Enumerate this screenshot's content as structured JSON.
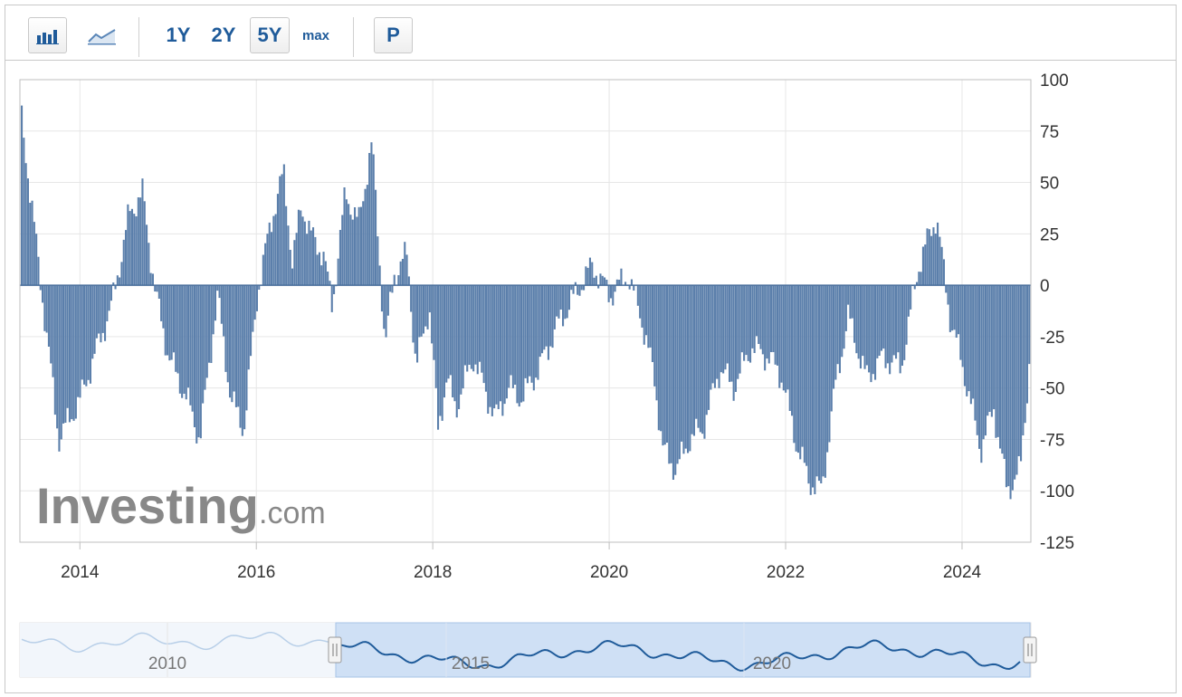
{
  "toolbar": {
    "icons": [
      "bar-chart-icon",
      "line-chart-icon"
    ],
    "ranges": [
      "1Y",
      "2Y",
      "5Y",
      "max"
    ],
    "selected_range": "5Y",
    "p_label": "P"
  },
  "logo": {
    "main": "Investing",
    "suffix": ".com"
  },
  "colors": {
    "bar": "#5b7fab",
    "navigator_line": "#1f5b9a",
    "navigator_fill": "#cfe0f5",
    "accent": "#1f5b9a"
  },
  "chart_data": {
    "type": "bar",
    "x": [
      2013.32,
      2013.75,
      2014.0,
      2014.15,
      2014.35,
      2014.55,
      2014.7,
      2014.85,
      2015.0,
      2015.2,
      2015.35,
      2015.55,
      2015.7,
      2015.85,
      2016.0,
      2016.15,
      2016.3,
      2016.4,
      2016.5,
      2016.6,
      2016.75,
      2016.85,
      2017.0,
      2017.15,
      2017.3,
      2017.45,
      2017.55,
      2017.7,
      2017.8,
      2017.95,
      2018.05,
      2018.15,
      2018.25,
      2018.45,
      2018.7,
      2018.85,
      2019.0,
      2019.2,
      2019.4,
      2019.6,
      2019.8,
      2020.0,
      2020.2,
      2020.35,
      2020.5,
      2020.6,
      2020.75,
      2020.9,
      2021.05,
      2021.25,
      2021.4,
      2021.6,
      2021.8,
      2021.95,
      2022.1,
      2022.25,
      2022.4,
      2022.55,
      2022.7,
      2022.9,
      2023.1,
      2023.3,
      2023.5,
      2023.7,
      2023.85,
      2024.0,
      2024.2,
      2024.35,
      2024.5,
      2024.65,
      2024.75,
      2024.8
    ],
    "values": [
      85,
      -75,
      -55,
      -35,
      -10,
      35,
      45,
      -5,
      -35,
      -55,
      -75,
      -5,
      -55,
      -70,
      -5,
      30,
      55,
      10,
      40,
      25,
      15,
      -10,
      45,
      30,
      70,
      -30,
      5,
      15,
      -40,
      -10,
      -70,
      -45,
      -60,
      -35,
      -65,
      -50,
      -55,
      -40,
      -20,
      -5,
      10,
      -5,
      5,
      -15,
      -45,
      -80,
      -90,
      -75,
      -70,
      -40,
      -50,
      -30,
      -35,
      -45,
      -75,
      -95,
      -100,
      -50,
      -15,
      -45,
      -35,
      -40,
      10,
      34,
      -15,
      -40,
      -80,
      -60,
      -100,
      -90,
      -40,
      34
    ],
    "xlim": [
      2013.32,
      2024.78
    ],
    "ylim": [
      -125,
      100
    ],
    "y_ticks": [
      "100",
      "75",
      "50",
      "25",
      "0",
      "-25",
      "-50",
      "-75",
      "-100",
      "-125"
    ],
    "x_ticks": [
      "2014",
      "2016",
      "2018",
      "2020",
      "2022",
      "2024"
    ],
    "grid": true
  },
  "navigator": {
    "labels": [
      "2010",
      "2015",
      "2020"
    ]
  }
}
